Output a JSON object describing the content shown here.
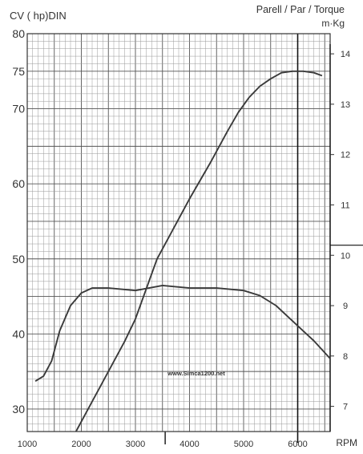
{
  "chart_data": {
    "type": "line",
    "ylabel_left": "CV ( hp)DIN",
    "ylabel_right_line1": "Parell / Par / Torque",
    "ylabel_right_line2": "m·Kg",
    "xlabel": "RPM",
    "watermark": "www.Simca1200.net",
    "xlim": [
      1000,
      6600
    ],
    "ylim_left": [
      27,
      80
    ],
    "ylim_right": [
      6.5,
      14.4
    ],
    "x_ticks": [
      1000,
      2000,
      3000,
      4000,
      5000,
      6000
    ],
    "y_left_ticks": [
      30,
      40,
      50,
      60,
      70,
      75,
      80
    ],
    "y_right_ticks": [
      7,
      8,
      9,
      10,
      11,
      12,
      13,
      14
    ],
    "series": [
      {
        "axis": "right",
        "points": [
          [
            1150,
            7.5
          ],
          [
            1300,
            7.6
          ],
          [
            1450,
            7.9
          ],
          [
            1600,
            8.5
          ],
          [
            1800,
            9.0
          ],
          [
            2000,
            9.25
          ],
          [
            2200,
            9.35
          ],
          [
            2500,
            9.35
          ],
          [
            3000,
            9.3
          ],
          [
            3500,
            9.4
          ],
          [
            4000,
            9.35
          ],
          [
            4500,
            9.35
          ],
          [
            5000,
            9.3
          ],
          [
            5300,
            9.2
          ],
          [
            5600,
            9.0
          ],
          [
            6000,
            8.6
          ],
          [
            6300,
            8.3
          ],
          [
            6600,
            7.95
          ]
        ]
      },
      {
        "axis": "left",
        "points": [
          [
            1900,
            27
          ],
          [
            2200,
            31
          ],
          [
            2500,
            35
          ],
          [
            2800,
            39
          ],
          [
            3000,
            42
          ],
          [
            3200,
            46
          ],
          [
            3400,
            50
          ],
          [
            3700,
            54
          ],
          [
            4000,
            58
          ],
          [
            4400,
            63
          ],
          [
            4700,
            67
          ],
          [
            4900,
            69.5
          ],
          [
            5100,
            71.5
          ],
          [
            5300,
            73
          ],
          [
            5500,
            74
          ],
          [
            5700,
            74.8
          ],
          [
            5900,
            75
          ],
          [
            6100,
            75
          ],
          [
            6300,
            74.8
          ],
          [
            6450,
            74.4
          ]
        ]
      }
    ]
  }
}
